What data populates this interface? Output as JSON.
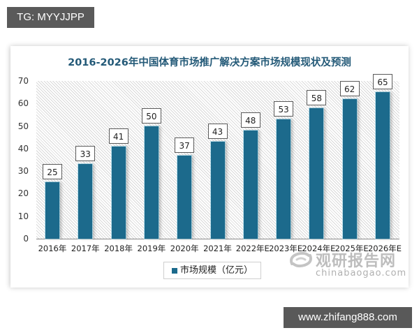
{
  "watermarks": {
    "top_tag": "TG: MYYJJPP",
    "bottom_tag": "www.zhifang888.com",
    "logo_cn": "观研报告网",
    "logo_en": "chinabaogao.com"
  },
  "colors": {
    "bar": "#1c6a8c",
    "title": "#245a78"
  },
  "chart_data": {
    "type": "bar",
    "title": "2016-2026年中国体育市场推广解决方案市场规模现状及预测",
    "xlabel": "",
    "ylabel": "",
    "categories": [
      "2016年",
      "2017年",
      "2018年",
      "2019年",
      "2020年",
      "2021年",
      "2022年E",
      "2023年E",
      "2024年E",
      "2025年E",
      "2026年E"
    ],
    "series": [
      {
        "name": "市场规模（亿元）",
        "values": [
          25,
          33,
          41,
          50,
          37,
          43,
          48,
          53,
          58,
          62,
          65
        ]
      }
    ],
    "values": [
      25,
      33,
      41,
      50,
      37,
      43,
      48,
      53,
      58,
      62,
      65
    ],
    "ylim": [
      0,
      70
    ],
    "yticks": [
      "0",
      "10",
      "20",
      "30",
      "40",
      "50",
      "60",
      "70"
    ],
    "grid": false,
    "legend_position": "bottom",
    "data_labels": [
      "25",
      "33",
      "41",
      "50",
      "37",
      "43",
      "48",
      "53",
      "58",
      "62",
      "65"
    ]
  },
  "legend": {
    "label": "市场规模（亿元）"
  }
}
